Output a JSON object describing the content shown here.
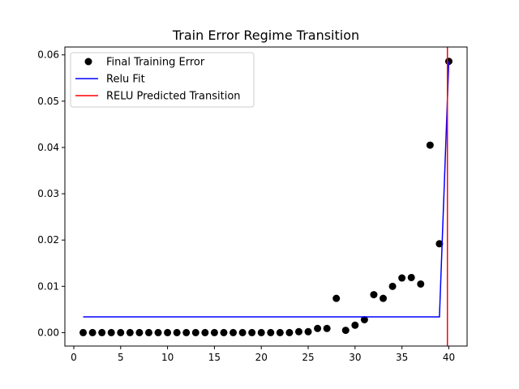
{
  "chart_data": {
    "type": "scatter",
    "title": "Train Error Regime Transition",
    "xlabel": "",
    "ylabel": "",
    "xlim": [
      -0.95,
      41.95
    ],
    "ylim": [
      -0.0029,
      0.0617
    ],
    "xticks": [
      0,
      5,
      10,
      15,
      20,
      25,
      30,
      35,
      40
    ],
    "yticks": [
      0.0,
      0.01,
      0.02,
      0.03,
      0.04,
      0.05,
      0.06
    ],
    "ytick_labels": [
      "0.00",
      "0.01",
      "0.02",
      "0.03",
      "0.04",
      "0.05",
      "0.06"
    ],
    "grid": false,
    "legend_position": "top-left",
    "series": [
      {
        "name": "Final Training Error",
        "kind": "scatter",
        "color": "#000000",
        "x": [
          1,
          2,
          3,
          4,
          5,
          6,
          7,
          8,
          9,
          10,
          11,
          12,
          13,
          14,
          15,
          16,
          17,
          18,
          19,
          20,
          21,
          22,
          23,
          24,
          25,
          26,
          27,
          28,
          29,
          30,
          31,
          32,
          33,
          34,
          35,
          36,
          37,
          38,
          39,
          40
        ],
        "y": [
          0,
          0,
          0,
          0,
          0,
          0,
          0,
          0,
          0,
          0,
          0,
          0,
          0,
          0,
          0,
          0,
          0,
          0,
          0,
          0,
          0,
          0,
          0,
          0.0002,
          0.0002,
          0.0009,
          0.0009,
          0.0074,
          0.0005,
          0.0016,
          0.0028,
          0.0082,
          0.0074,
          0.01,
          0.0118,
          0.0119,
          0.0105,
          0.0405,
          0.0192,
          0.0586
        ]
      },
      {
        "name": "Relu Fit",
        "kind": "line",
        "color": "#0000ff",
        "x": [
          1,
          39,
          40
        ],
        "y": [
          0.0034,
          0.0034,
          0.0586
        ]
      }
    ],
    "vlines": [
      {
        "name": "RELU Predicted Transition",
        "color": "#ff0000",
        "x": 39.85
      }
    ]
  }
}
